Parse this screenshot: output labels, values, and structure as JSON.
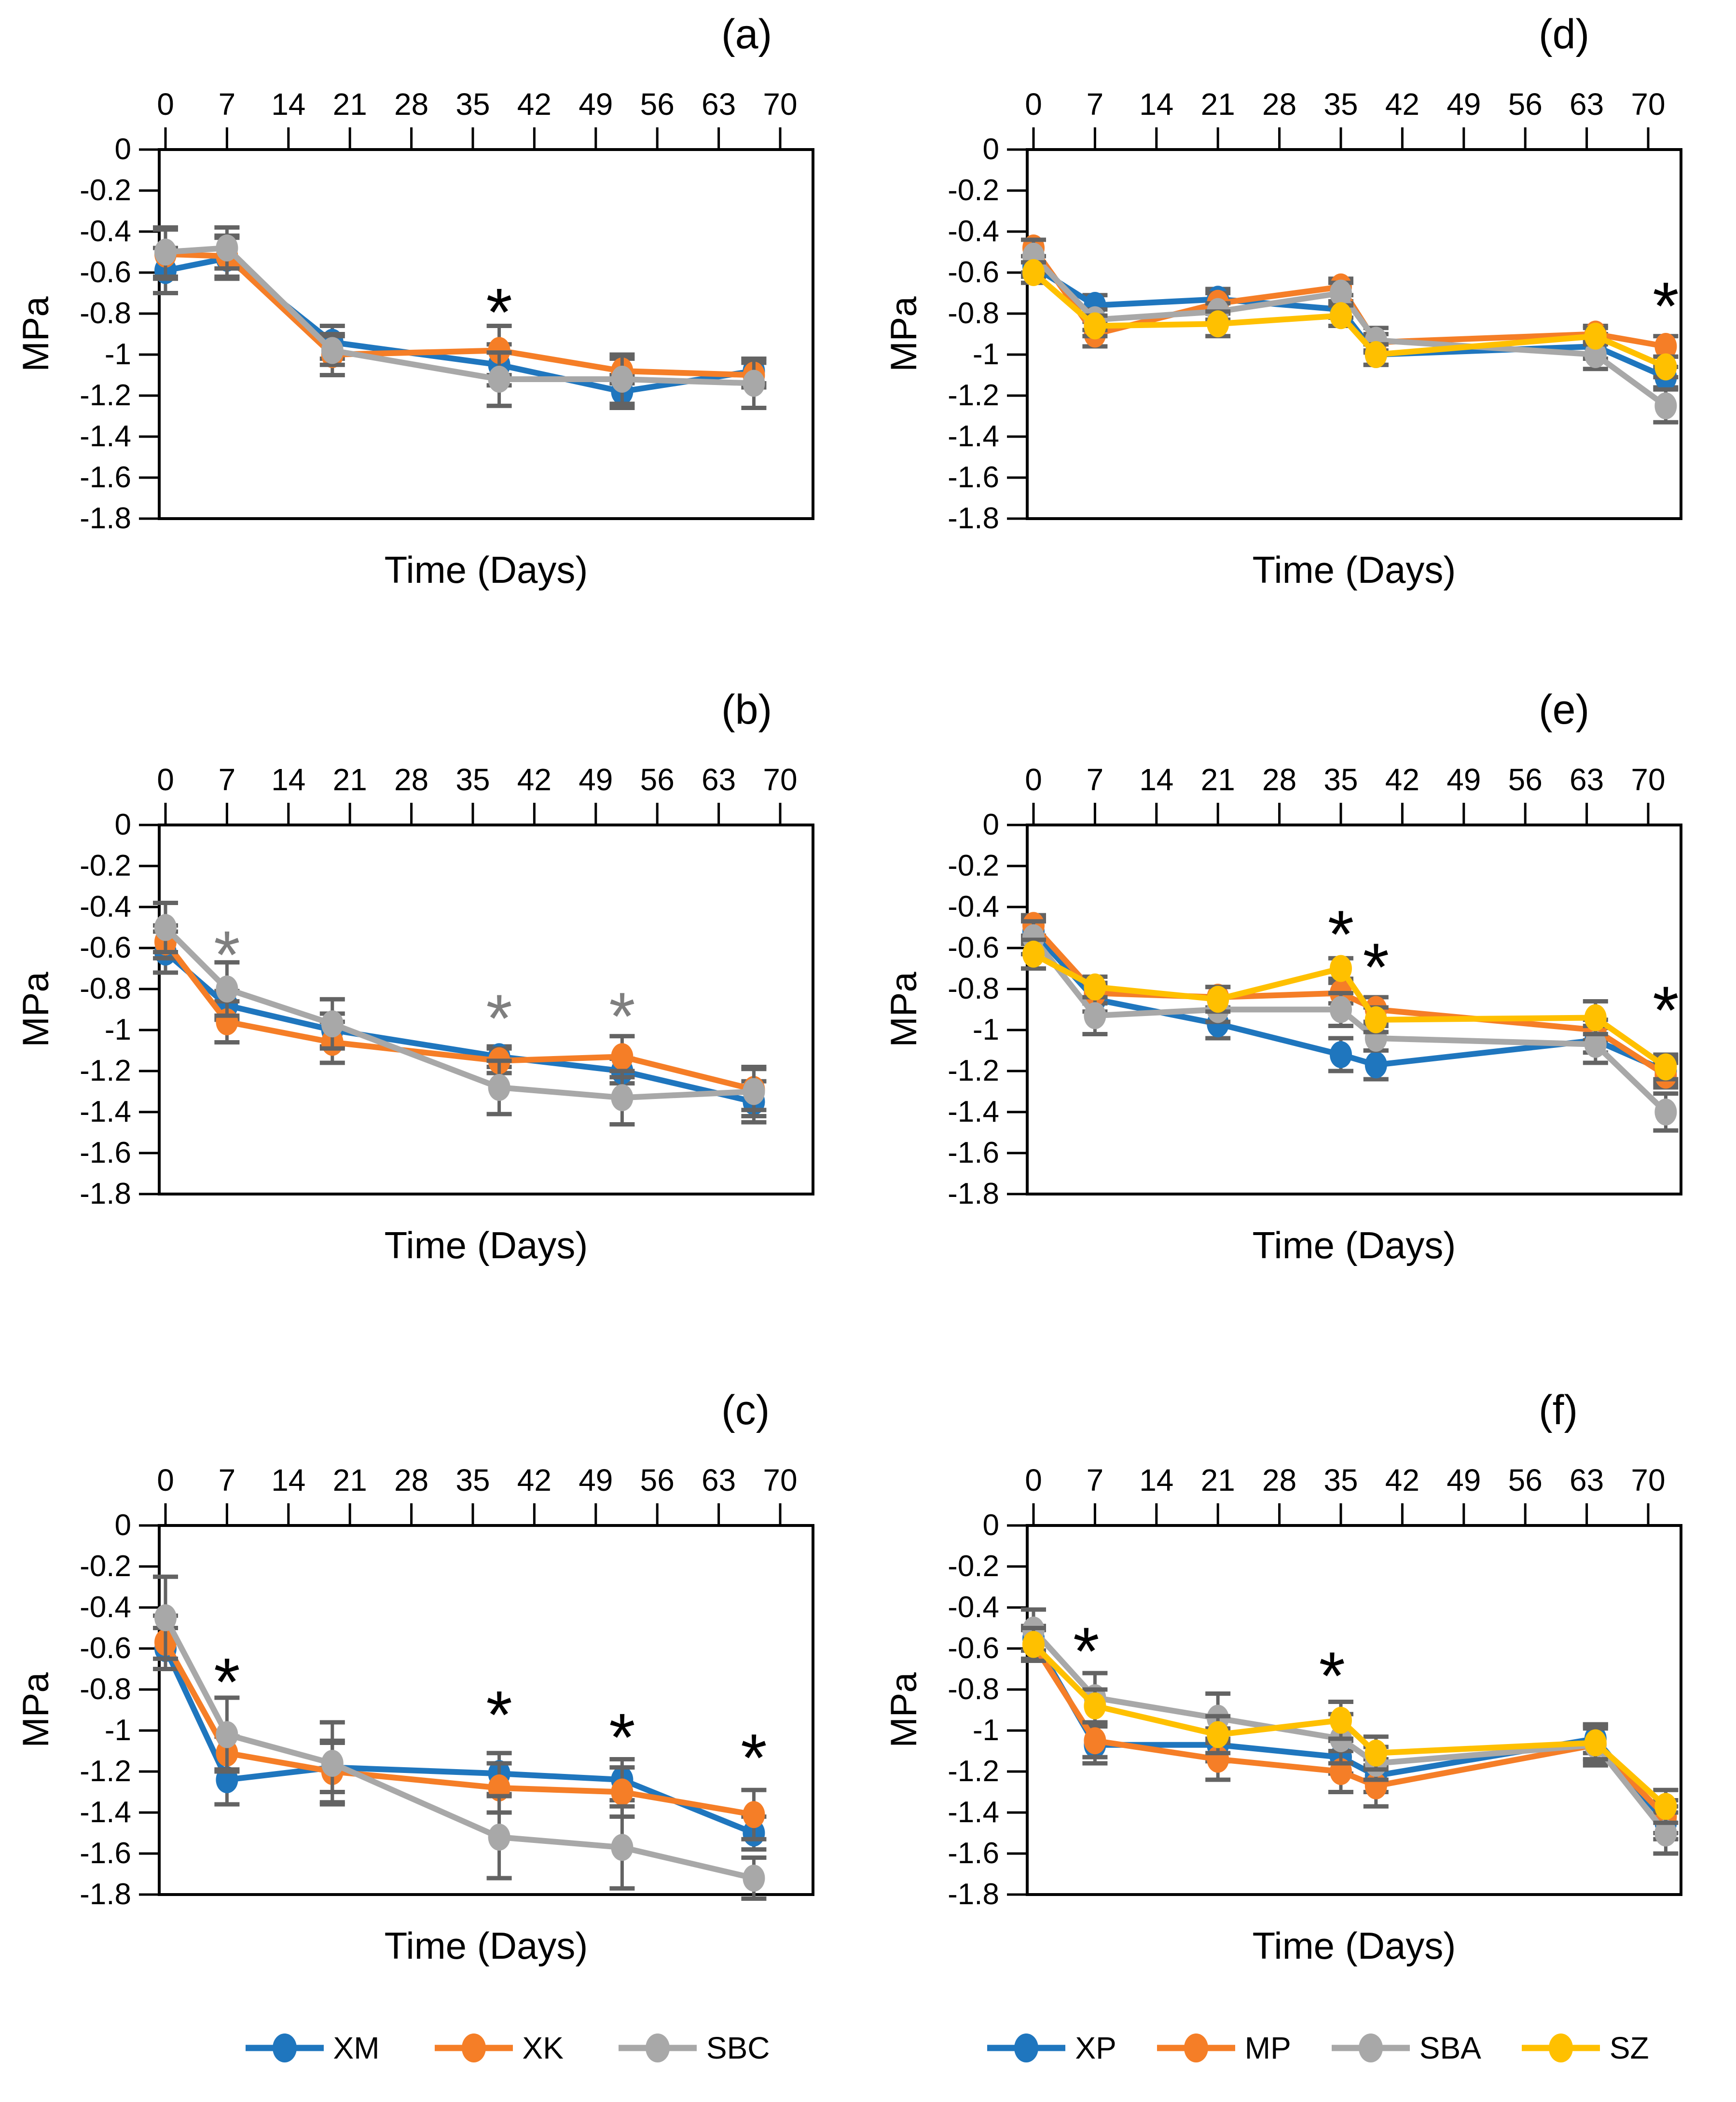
{
  "colors": {
    "blue": "#1F76BE",
    "orange": "#F57E27",
    "gray": "#A8A8A8",
    "yellow": "#FFC000",
    "error": "#636363",
    "axis": "#000000"
  },
  "legends": {
    "left": {
      "items": [
        {
          "label": "XM",
          "color_key": "blue"
        },
        {
          "label": "XK",
          "color_key": "orange"
        },
        {
          "label": "SBC",
          "color_key": "gray"
        }
      ]
    },
    "right": {
      "items": [
        {
          "label": "XP",
          "color_key": "blue"
        },
        {
          "label": "MP",
          "color_key": "orange"
        },
        {
          "label": "SBA",
          "color_key": "gray"
        },
        {
          "label": "SZ",
          "color_key": "yellow"
        }
      ]
    }
  },
  "chart_data": [
    {
      "panel_label": "(a)",
      "type": "line",
      "xlabel": "Time (Days)",
      "ylabel": "MPa",
      "x_ticks": [
        0,
        7,
        14,
        21,
        28,
        35,
        42,
        49,
        56,
        63,
        70
      ],
      "y_ticks": [
        0,
        -0.2,
        -0.4,
        -0.6,
        -0.8,
        -1,
        -1.2,
        -1.4,
        -1.6,
        -1.8
      ],
      "xlim": [
        0,
        70
      ],
      "ylim": [
        0,
        -1.8
      ],
      "series": [
        {
          "name": "XM",
          "color_key": "blue",
          "x": [
            0,
            7,
            19,
            38,
            52,
            67
          ],
          "y": [
            -0.59,
            -0.53,
            -0.94,
            -1.05,
            -1.18,
            -1.08
          ],
          "err": [
            0.11,
            0.1,
            0.08,
            0.1,
            0.08,
            0.06
          ]
        },
        {
          "name": "XK",
          "color_key": "orange",
          "x": [
            0,
            7,
            19,
            38,
            52,
            67
          ],
          "y": [
            -0.51,
            -0.52,
            -1.0,
            -0.98,
            -1.08,
            -1.1
          ],
          "err": [
            0.12,
            0.1,
            0.1,
            0.12,
            0.06,
            0.06
          ]
        },
        {
          "name": "SBC",
          "color_key": "gray",
          "x": [
            0,
            7,
            19,
            38,
            52,
            67
          ],
          "y": [
            -0.5,
            -0.48,
            -0.98,
            -1.12,
            -1.12,
            -1.14
          ],
          "err": [
            0.12,
            0.1,
            0.07,
            0.13,
            0.12,
            0.12
          ]
        }
      ],
      "asterisks": [
        {
          "day": 38,
          "mpa": -0.73,
          "color": "#000000"
        }
      ]
    },
    {
      "panel_label": "(b)",
      "type": "line",
      "xlabel": "Time (Days)",
      "ylabel": "MPa",
      "x_ticks": [
        0,
        7,
        14,
        21,
        28,
        35,
        42,
        49,
        56,
        63,
        70
      ],
      "y_ticks": [
        0,
        -0.2,
        -0.4,
        -0.6,
        -0.8,
        -1,
        -1.2,
        -1.4,
        -1.6,
        -1.8
      ],
      "xlim": [
        0,
        70
      ],
      "ylim": [
        0,
        -1.8
      ],
      "series": [
        {
          "name": "XM",
          "color_key": "blue",
          "x": [
            0,
            7,
            19,
            38,
            52,
            67
          ],
          "y": [
            -0.62,
            -0.88,
            -1.0,
            -1.13,
            -1.2,
            -1.35
          ],
          "err": [
            0.1,
            0.07,
            0.08,
            0.05,
            0.06,
            0.1
          ]
        },
        {
          "name": "XK",
          "color_key": "orange",
          "x": [
            0,
            7,
            19,
            38,
            52,
            67
          ],
          "y": [
            -0.57,
            -0.96,
            -1.06,
            -1.15,
            -1.13,
            -1.29
          ],
          "err": [
            0.08,
            0.1,
            0.1,
            0.06,
            0.1,
            0.1
          ]
        },
        {
          "name": "SBC",
          "color_key": "gray",
          "x": [
            0,
            7,
            19,
            38,
            52,
            67
          ],
          "y": [
            -0.5,
            -0.8,
            -0.97,
            -1.28,
            -1.33,
            -1.3
          ],
          "err": [
            0.12,
            0.13,
            0.12,
            0.13,
            0.13,
            0.12
          ]
        }
      ],
      "asterisks": [
        {
          "day": 7,
          "mpa": -0.57,
          "color": "#7F7F7F"
        },
        {
          "day": 38,
          "mpa": -0.88,
          "color": "#7F7F7F"
        },
        {
          "day": 52,
          "mpa": -0.87,
          "color": "#7F7F7F"
        }
      ]
    },
    {
      "panel_label": "(c)",
      "type": "line",
      "xlabel": "Time (Days)",
      "ylabel": "MPa",
      "x_ticks": [
        0,
        7,
        14,
        21,
        28,
        35,
        42,
        49,
        56,
        63,
        70
      ],
      "y_ticks": [
        0,
        -0.2,
        -0.4,
        -0.6,
        -0.8,
        -1,
        -1.2,
        -1.4,
        -1.6,
        -1.8
      ],
      "xlim": [
        0,
        70
      ],
      "ylim": [
        0,
        -1.8
      ],
      "series": [
        {
          "name": "XM",
          "color_key": "blue",
          "x": [
            0,
            7,
            19,
            38,
            52,
            67
          ],
          "y": [
            -0.6,
            -1.24,
            -1.18,
            -1.21,
            -1.24,
            -1.5
          ],
          "err": [
            0.1,
            0.12,
            0.12,
            0.1,
            0.1,
            0.08
          ]
        },
        {
          "name": "XK",
          "color_key": "orange",
          "x": [
            0,
            7,
            19,
            38,
            52,
            67
          ],
          "y": [
            -0.57,
            -1.11,
            -1.2,
            -1.28,
            -1.3,
            -1.41
          ],
          "err": [
            0.13,
            0.08,
            0.15,
            0.12,
            0.12,
            0.12
          ]
        },
        {
          "name": "SBC",
          "color_key": "gray",
          "x": [
            0,
            7,
            19,
            38,
            52,
            67
          ],
          "y": [
            -0.45,
            -1.02,
            -1.16,
            -1.52,
            -1.57,
            -1.72
          ],
          "err": [
            0.2,
            0.18,
            0.2,
            0.2,
            0.2,
            0.1
          ]
        }
      ],
      "asterisks": [
        {
          "day": 7,
          "mpa": -0.7,
          "color": "#000000"
        },
        {
          "day": 38,
          "mpa": -0.86,
          "color": "#000000"
        },
        {
          "day": 52,
          "mpa": -0.97,
          "color": "#000000"
        },
        {
          "day": 67,
          "mpa": -1.07,
          "color": "#000000"
        }
      ]
    },
    {
      "panel_label": "(d)",
      "type": "line",
      "xlabel": "Time (Days)",
      "ylabel": "MPa",
      "x_ticks": [
        0,
        7,
        14,
        21,
        28,
        35,
        42,
        49,
        56,
        63,
        70
      ],
      "y_ticks": [
        0,
        -0.2,
        -0.4,
        -0.6,
        -0.8,
        -1,
        -1.2,
        -1.4,
        -1.6,
        -1.8
      ],
      "xlim": [
        0,
        70
      ],
      "ylim": [
        0,
        -1.8
      ],
      "series": [
        {
          "name": "XP",
          "color_key": "blue",
          "x": [
            0,
            7,
            21,
            35,
            39,
            64,
            72
          ],
          "y": [
            -0.57,
            -0.76,
            -0.73,
            -0.78,
            -1.0,
            -0.96,
            -1.11
          ],
          "err": [
            0.05,
            0.05,
            0.05,
            0.04,
            0.05,
            0.06,
            0.05
          ]
        },
        {
          "name": "MP",
          "color_key": "orange",
          "x": [
            0,
            7,
            21,
            35,
            39,
            64,
            72
          ],
          "y": [
            -0.48,
            -0.9,
            -0.75,
            -0.67,
            -0.94,
            -0.9,
            -0.96
          ],
          "err": [
            0.04,
            0.06,
            0.05,
            0.04,
            0.04,
            0.04,
            0.05
          ]
        },
        {
          "name": "SBA",
          "color_key": "gray",
          "x": [
            0,
            7,
            21,
            35,
            39,
            64,
            72
          ],
          "y": [
            -0.52,
            -0.83,
            -0.79,
            -0.7,
            -0.93,
            -1.0,
            -1.25
          ],
          "err": [
            0.08,
            0.05,
            0.04,
            0.05,
            0.06,
            0.07,
            0.08
          ]
        },
        {
          "name": "SZ",
          "color_key": "yellow",
          "x": [
            0,
            7,
            21,
            35,
            39,
            64,
            72
          ],
          "y": [
            -0.6,
            -0.86,
            -0.85,
            -0.81,
            -1.0,
            -0.91,
            -1.06
          ],
          "err": [
            0.05,
            0.05,
            0.06,
            0.05,
            0.05,
            0.04,
            0.05
          ]
        }
      ],
      "asterisks": [
        {
          "day": 72,
          "mpa": -0.7,
          "color": "#000000"
        }
      ]
    },
    {
      "panel_label": "(e)",
      "type": "line",
      "xlabel": "Time (Days)",
      "ylabel": "MPa",
      "x_ticks": [
        0,
        7,
        14,
        21,
        28,
        35,
        42,
        49,
        56,
        63,
        70
      ],
      "y_ticks": [
        0,
        -0.2,
        -0.4,
        -0.6,
        -0.8,
        -1,
        -1.2,
        -1.4,
        -1.6,
        -1.8
      ],
      "xlim": [
        0,
        70
      ],
      "ylim": [
        0,
        -1.8
      ],
      "series": [
        {
          "name": "XP",
          "color_key": "blue",
          "x": [
            0,
            7,
            21,
            35,
            39,
            64,
            72
          ],
          "y": [
            -0.52,
            -0.85,
            -0.97,
            -1.12,
            -1.17,
            -1.05,
            -1.2
          ],
          "err": [
            0.06,
            0.06,
            0.07,
            0.08,
            0.07,
            0.06,
            0.06
          ]
        },
        {
          "name": "MP",
          "color_key": "orange",
          "x": [
            0,
            7,
            21,
            35,
            39,
            64,
            72
          ],
          "y": [
            -0.49,
            -0.82,
            -0.84,
            -0.82,
            -0.9,
            -1.0,
            -1.22
          ],
          "err": [
            0.05,
            0.05,
            0.05,
            0.05,
            0.06,
            0.05,
            0.06
          ]
        },
        {
          "name": "SBA",
          "color_key": "gray",
          "x": [
            0,
            7,
            21,
            35,
            39,
            64,
            72
          ],
          "y": [
            -0.55,
            -0.93,
            -0.9,
            -0.9,
            -1.04,
            -1.07,
            -1.4
          ],
          "err": [
            0.08,
            0.09,
            0.06,
            0.08,
            0.06,
            0.09,
            0.09
          ]
        },
        {
          "name": "SZ",
          "color_key": "yellow",
          "x": [
            0,
            7,
            21,
            35,
            39,
            64,
            72
          ],
          "y": [
            -0.63,
            -0.79,
            -0.85,
            -0.7,
            -0.95,
            -0.94,
            -1.18
          ],
          "err": [
            0.07,
            0.05,
            0.06,
            0.05,
            0.06,
            0.08,
            0.06
          ]
        }
      ],
      "asterisks": [
        {
          "day": 35,
          "mpa": -0.47,
          "color": "#000000"
        },
        {
          "day": 39,
          "mpa": -0.63,
          "color": "#000000"
        },
        {
          "day": 72,
          "mpa": -0.84,
          "color": "#000000"
        }
      ]
    },
    {
      "panel_label": "(f)",
      "type": "line",
      "xlabel": "Time (Days)",
      "ylabel": "MPa",
      "x_ticks": [
        0,
        7,
        14,
        21,
        28,
        35,
        42,
        49,
        56,
        63,
        70
      ],
      "y_ticks": [
        0,
        -0.2,
        -0.4,
        -0.6,
        -0.8,
        -1,
        -1.2,
        -1.4,
        -1.6,
        -1.8
      ],
      "xlim": [
        0,
        70
      ],
      "ylim": [
        0,
        -1.8
      ],
      "series": [
        {
          "name": "XP",
          "color_key": "blue",
          "x": [
            0,
            7,
            21,
            35,
            39,
            64,
            72
          ],
          "y": [
            -0.55,
            -1.07,
            -1.07,
            -1.13,
            -1.22,
            -1.04,
            -1.45
          ],
          "err": [
            0.06,
            0.09,
            0.08,
            0.08,
            0.08,
            0.07,
            0.08
          ]
        },
        {
          "name": "MP",
          "color_key": "orange",
          "x": [
            0,
            7,
            21,
            35,
            39,
            64,
            72
          ],
          "y": [
            -0.58,
            -1.05,
            -1.14,
            -1.2,
            -1.27,
            -1.07,
            -1.42
          ],
          "err": [
            0.07,
            0.08,
            0.1,
            0.1,
            0.1,
            0.08,
            0.08
          ]
        },
        {
          "name": "SBA",
          "color_key": "gray",
          "x": [
            0,
            7,
            21,
            35,
            39,
            64,
            72
          ],
          "y": [
            -0.51,
            -0.84,
            -0.94,
            -1.04,
            -1.16,
            -1.07,
            -1.5
          ],
          "err": [
            0.1,
            0.12,
            0.12,
            0.12,
            0.08,
            0.1,
            0.1
          ]
        },
        {
          "name": "SZ",
          "color_key": "yellow",
          "x": [
            0,
            7,
            21,
            35,
            39,
            64,
            72
          ],
          "y": [
            -0.58,
            -0.88,
            -1.02,
            -0.95,
            -1.11,
            -1.06,
            -1.37
          ],
          "err": [
            0.08,
            0.08,
            0.09,
            0.09,
            0.08,
            0.08,
            0.08
          ]
        }
      ],
      "asterisks": [
        {
          "day": 6,
          "mpa": -0.55,
          "color": "#000000"
        },
        {
          "day": 34,
          "mpa": -0.67,
          "color": "#000000"
        }
      ]
    }
  ]
}
